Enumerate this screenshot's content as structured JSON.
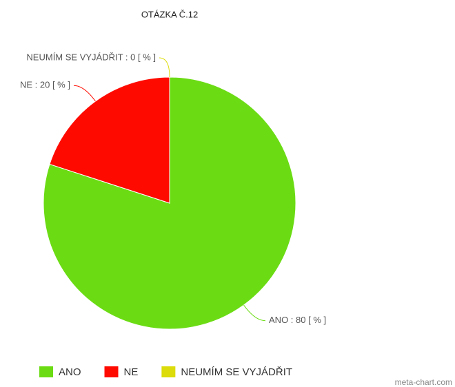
{
  "chart_data": {
    "type": "pie",
    "title": "OTÁZKA Č.12",
    "categories": [
      "ANO",
      "NE",
      "NEUMÍM SE VYJÁDŘIT"
    ],
    "values": [
      80,
      20,
      0
    ],
    "value_labels": [
      "ANO : 80 [ % ]",
      "NE : 20 [ % ]",
      "NEUMÍM SE VYJÁDŘIT : 0 [ % ]"
    ],
    "colors": [
      "#6bdc14",
      "#ff0a00",
      "#dcdc0a"
    ],
    "legend": "bottom",
    "watermark": "meta-chart.com"
  }
}
